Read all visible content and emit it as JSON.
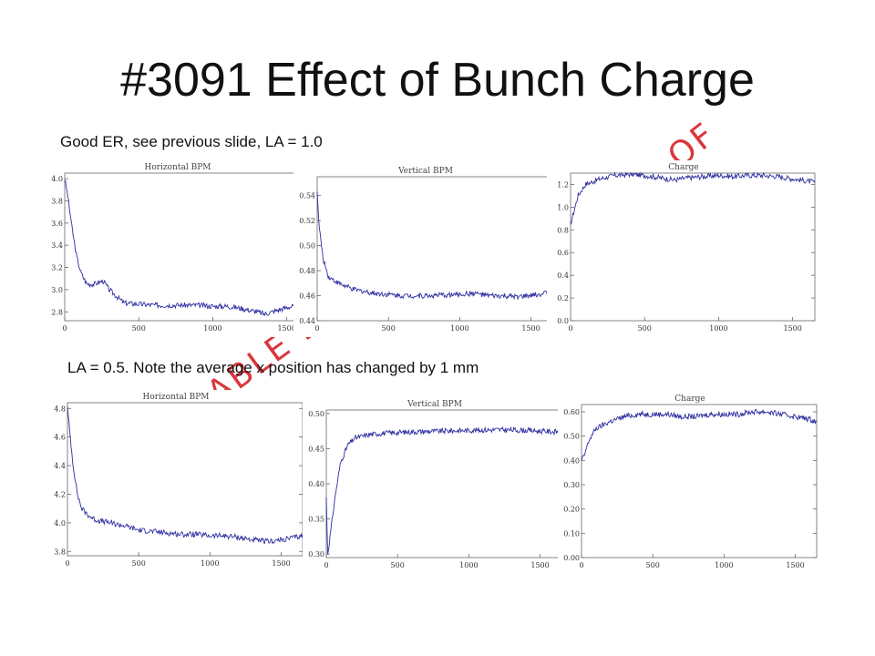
{
  "slide": {
    "title": "#3091 Effect of Bunch Charge",
    "caption_top": "Good ER, see previous slide, LA = 1.0",
    "caption_bottom": "LA = 0.5. Note the average x position has changed by 1 mm",
    "watermark_top": "OF",
    "watermark_mid": "ABLE D"
  },
  "colors": {
    "series": "#2c2ea0",
    "watermark": "#d8262c"
  },
  "chart_data": [
    {
      "type": "line",
      "title": "Horizontal BPM",
      "xlim": [
        0,
        1650
      ],
      "ylim": [
        2.72,
        4.05
      ],
      "xticks": [
        0,
        500,
        1000,
        1500
      ],
      "yticks": [
        2.8,
        3.0,
        3.2,
        3.4,
        3.6,
        3.8,
        4.0
      ],
      "series": [
        {
          "x": [
            0,
            20,
            50,
            80,
            110,
            150,
            200,
            260,
            300,
            400,
            500,
            600,
            700,
            800,
            900,
            1000,
            1100,
            1200,
            1300,
            1350,
            1400,
            1500,
            1600,
            1650
          ],
          "values": [
            4.0,
            3.85,
            3.55,
            3.3,
            3.15,
            3.05,
            3.05,
            3.08,
            3.0,
            2.88,
            2.87,
            2.86,
            2.86,
            2.86,
            2.86,
            2.85,
            2.85,
            2.83,
            2.8,
            2.78,
            2.8,
            2.84,
            2.86,
            2.86
          ]
        }
      ]
    },
    {
      "type": "line",
      "title": "Vertical BPM",
      "xlim": [
        0,
        1650
      ],
      "ylim": [
        0.44,
        0.555
      ],
      "xticks": [
        0,
        500,
        1000,
        1500
      ],
      "yticks": [
        0.44,
        0.46,
        0.48,
        0.5,
        0.52,
        0.54
      ],
      "series": [
        {
          "x": [
            0,
            10,
            40,
            80,
            150,
            250,
            400,
            600,
            800,
            1000,
            1100,
            1200,
            1400,
            1500,
            1600,
            1650
          ],
          "values": [
            0.545,
            0.52,
            0.49,
            0.475,
            0.47,
            0.465,
            0.462,
            0.46,
            0.46,
            0.461,
            0.462,
            0.46,
            0.459,
            0.46,
            0.462,
            0.463
          ]
        }
      ]
    },
    {
      "type": "line",
      "title": "Charge",
      "xlim": [
        0,
        1650
      ],
      "ylim": [
        0.0,
        1.3
      ],
      "xticks": [
        0,
        500,
        1000,
        1500
      ],
      "yticks": [
        0.0,
        0.2,
        0.4,
        0.6,
        0.8,
        1.0,
        1.2
      ],
      "series": [
        {
          "x": [
            0,
            20,
            50,
            100,
            200,
            300,
            400,
            500,
            600,
            700,
            800,
            900,
            1000,
            1100,
            1200,
            1300,
            1400,
            1500,
            1600,
            1650
          ],
          "values": [
            0.85,
            0.95,
            1.1,
            1.2,
            1.25,
            1.28,
            1.29,
            1.28,
            1.26,
            1.24,
            1.26,
            1.27,
            1.28,
            1.27,
            1.28,
            1.28,
            1.27,
            1.25,
            1.23,
            1.22
          ]
        }
      ]
    },
    {
      "type": "line",
      "title": "Horizontal BPM",
      "xlim": [
        0,
        1650
      ],
      "ylim": [
        3.77,
        4.84
      ],
      "xticks": [
        0,
        500,
        1000,
        1500
      ],
      "yticks": [
        3.8,
        4.0,
        4.2,
        4.4,
        4.6,
        4.8
      ],
      "series": [
        {
          "x": [
            0,
            15,
            40,
            70,
            100,
            150,
            200,
            300,
            400,
            500,
            600,
            700,
            800,
            900,
            1000,
            1100,
            1200,
            1300,
            1400,
            1500,
            1600,
            1650
          ],
          "values": [
            4.8,
            4.65,
            4.4,
            4.2,
            4.1,
            4.05,
            4.02,
            4.0,
            3.98,
            3.95,
            3.94,
            3.93,
            3.92,
            3.92,
            3.91,
            3.91,
            3.9,
            3.88,
            3.87,
            3.88,
            3.9,
            3.91
          ]
        }
      ]
    },
    {
      "type": "line",
      "title": "Vertical BPM",
      "xlim": [
        0,
        1650
      ],
      "ylim": [
        0.295,
        0.505
      ],
      "xticks": [
        0,
        500,
        1000,
        1500
      ],
      "yticks": [
        0.3,
        0.35,
        0.4,
        0.45,
        0.5
      ],
      "series": [
        {
          "x": [
            0,
            10,
            30,
            60,
            100,
            150,
            200,
            300,
            400,
            600,
            800,
            1000,
            1200,
            1400,
            1500,
            1600,
            1650
          ],
          "values": [
            0.38,
            0.3,
            0.33,
            0.38,
            0.43,
            0.455,
            0.465,
            0.47,
            0.472,
            0.474,
            0.475,
            0.476,
            0.477,
            0.476,
            0.475,
            0.474,
            0.474
          ]
        }
      ]
    },
    {
      "type": "line",
      "title": "Charge",
      "xlim": [
        0,
        1650
      ],
      "ylim": [
        0.0,
        0.63
      ],
      "xticks": [
        0,
        500,
        1000,
        1500
      ],
      "yticks": [
        0.0,
        0.1,
        0.2,
        0.3,
        0.4,
        0.5,
        0.6
      ],
      "series": [
        {
          "x": [
            0,
            20,
            50,
            100,
            200,
            300,
            400,
            500,
            600,
            700,
            800,
            900,
            1000,
            1100,
            1200,
            1300,
            1400,
            1500,
            1600,
            1650
          ],
          "values": [
            0.4,
            0.42,
            0.48,
            0.53,
            0.56,
            0.58,
            0.59,
            0.59,
            0.59,
            0.58,
            0.58,
            0.59,
            0.59,
            0.59,
            0.6,
            0.6,
            0.59,
            0.58,
            0.57,
            0.56
          ]
        }
      ]
    }
  ]
}
